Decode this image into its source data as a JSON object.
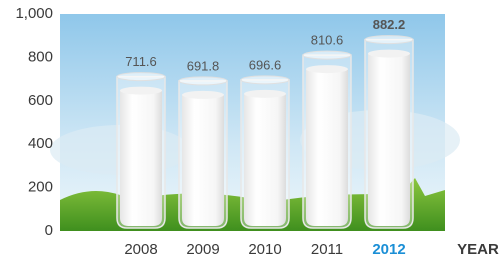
{
  "chart_data": {
    "type": "bar",
    "categories": [
      "2008",
      "2009",
      "2010",
      "2011",
      "2012"
    ],
    "values": [
      711.6,
      691.8,
      696.6,
      810.6,
      882.2
    ],
    "x_label": "YEAR",
    "color": "#ffffff",
    "highlight_index": 4,
    "highlight_color": "#1b8fd6",
    "ylim": [
      0,
      1000
    ],
    "yticks": [
      0,
      200,
      400,
      600,
      800,
      {
        "value": 1000,
        "label": "1,000"
      }
    ],
    "grid": false
  }
}
